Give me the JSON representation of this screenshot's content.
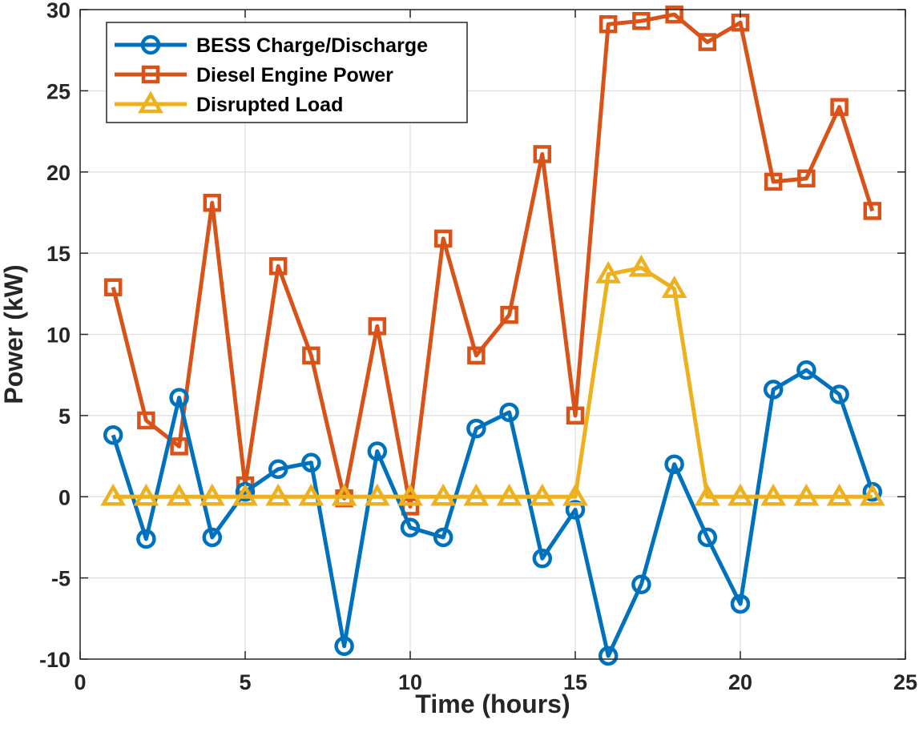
{
  "chart_data": {
    "type": "line",
    "title": "",
    "xlabel": "Time (hours)",
    "ylabel": "Power (kW)",
    "xlim": [
      0,
      25
    ],
    "ylim": [
      -10,
      30
    ],
    "xticks": [
      0,
      5,
      10,
      15,
      20,
      25
    ],
    "yticks": [
      -10,
      -5,
      0,
      5,
      10,
      15,
      20,
      25,
      30
    ],
    "grid": true,
    "legend_position": "top-left",
    "x": [
      1,
      2,
      3,
      4,
      5,
      6,
      7,
      8,
      9,
      10,
      11,
      12,
      13,
      14,
      15,
      16,
      17,
      18,
      19,
      20,
      21,
      22,
      23,
      24
    ],
    "series": [
      {
        "name": "BESS Charge/Discharge",
        "color": "#0072BD",
        "marker": "circle",
        "values": [
          3.8,
          -2.6,
          6.1,
          -2.5,
          0.3,
          1.7,
          2.1,
          -9.2,
          2.8,
          -1.9,
          -2.5,
          4.2,
          5.2,
          -3.8,
          -0.8,
          -9.8,
          -5.4,
          2.0,
          -2.5,
          -6.6,
          6.6,
          7.8,
          6.3,
          0.3
        ]
      },
      {
        "name": "Diesel Engine Power",
        "color": "#D95319",
        "marker": "square",
        "values": [
          12.9,
          4.7,
          3.1,
          18.1,
          0.7,
          14.2,
          8.7,
          -0.1,
          10.5,
          -0.6,
          15.9,
          8.7,
          11.2,
          21.1,
          5.0,
          29.1,
          29.3,
          29.7,
          28.0,
          29.2,
          19.4,
          19.6,
          24.0,
          17.6
        ]
      },
      {
        "name": "Disrupted Load",
        "color": "#EDB120",
        "marker": "triangle",
        "values": [
          0,
          0,
          0,
          0,
          0,
          0,
          0,
          0,
          0,
          0,
          0,
          0,
          0,
          0,
          0,
          13.7,
          14.1,
          12.8,
          0,
          0,
          0,
          0,
          0,
          0
        ]
      }
    ]
  }
}
